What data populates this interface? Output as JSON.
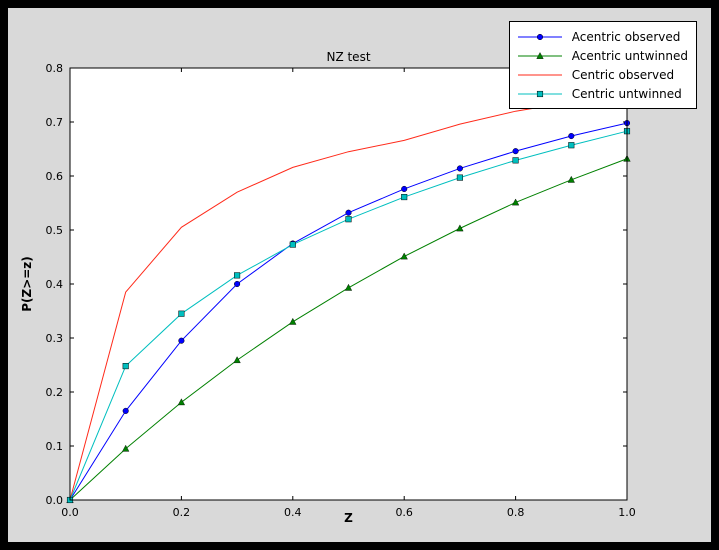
{
  "window": {
    "frame_color": "#000000",
    "figure_background": "#d9d9d9",
    "axes_background": "#ffffff"
  },
  "chart_data": {
    "type": "line",
    "title": "NZ test",
    "xlabel": "Z",
    "ylabel": "P(Z>=z)",
    "xlim": [
      0.0,
      1.0
    ],
    "ylim": [
      0.0,
      0.8
    ],
    "grid": false,
    "x_ticks": {
      "values": [
        0.0,
        0.2,
        0.4,
        0.6,
        0.8,
        1.0
      ],
      "labels": [
        "0.0",
        "0.2",
        "0.4",
        "0.6",
        "0.8",
        "1.0"
      ]
    },
    "y_ticks": {
      "values": [
        0.0,
        0.1,
        0.2,
        0.3,
        0.4,
        0.5,
        0.6,
        0.7,
        0.8
      ],
      "labels": [
        "0.0",
        "0.1",
        "0.2",
        "0.3",
        "0.4",
        "0.5",
        "0.6",
        "0.7",
        "0.8"
      ]
    },
    "x": [
      0.0,
      0.1,
      0.2,
      0.3,
      0.4,
      0.5,
      0.6,
      0.7,
      0.8,
      0.9,
      1.0
    ],
    "series": [
      {
        "name": "Acentric observed",
        "color": "#0000ff",
        "marker": "circle",
        "values": [
          0.0,
          0.165,
          0.295,
          0.4,
          0.475,
          0.532,
          0.576,
          0.614,
          0.646,
          0.674,
          0.698
        ]
      },
      {
        "name": "Acentric untwinned",
        "color": "#008000",
        "marker": "triangle",
        "values": [
          0.0,
          0.095,
          0.181,
          0.259,
          0.33,
          0.393,
          0.451,
          0.503,
          0.551,
          0.593,
          0.632
        ]
      },
      {
        "name": "Centric observed",
        "color": "#ff2a1a",
        "marker": "none",
        "values": [
          0.0,
          0.385,
          0.505,
          0.57,
          0.616,
          0.645,
          0.666,
          0.696,
          0.72,
          0.737,
          0.755
        ]
      },
      {
        "name": "Centric untwinned",
        "color": "#00bfbf",
        "marker": "square",
        "values": [
          0.0,
          0.248,
          0.345,
          0.416,
          0.473,
          0.52,
          0.561,
          0.597,
          0.629,
          0.657,
          0.683
        ]
      }
    ],
    "legend": {
      "position": "upper right"
    }
  }
}
